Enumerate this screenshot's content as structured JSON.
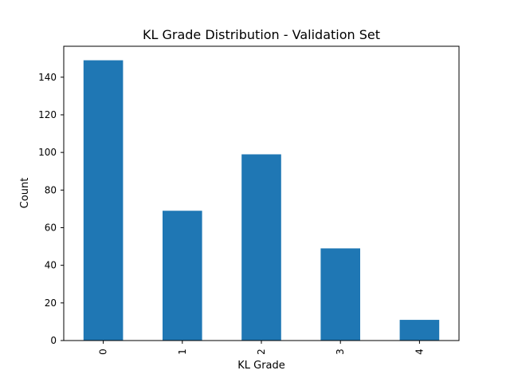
{
  "chart_data": {
    "type": "bar",
    "title": "KL Grade Distribution - Validation Set",
    "xlabel": "KL Grade",
    "ylabel": "Count",
    "categories": [
      "0",
      "1",
      "2",
      "3",
      "4"
    ],
    "values": [
      149,
      69,
      99,
      49,
      11
    ],
    "ylim": [
      0,
      156.45
    ],
    "yticks": [
      0,
      20,
      40,
      60,
      80,
      100,
      120,
      140
    ],
    "grid": false,
    "legend": "none",
    "colors": {
      "bar": "#1f77b4",
      "axis": "#000000",
      "background": "#ffffff"
    }
  }
}
